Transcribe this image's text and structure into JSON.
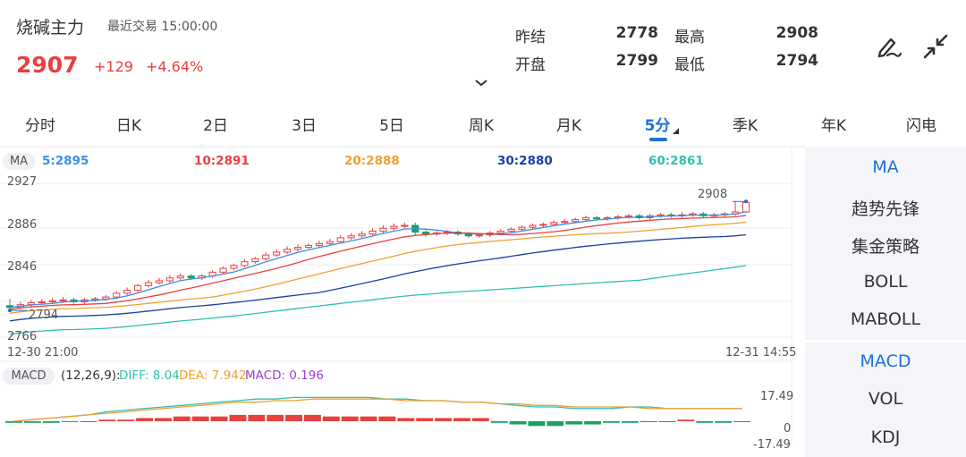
{
  "header": {
    "title": "烧碱主力",
    "last_trade": "最近交易 15:00:00",
    "price": "2907",
    "change": "+129",
    "change_pct": "+4.64%",
    "quotes": [
      {
        "label": "昨结",
        "value": "2778"
      },
      {
        "label": "最高",
        "value": "2908"
      },
      {
        "label": "开盘",
        "value": "2799"
      },
      {
        "label": "最低",
        "value": "2794"
      }
    ],
    "icons": [
      "draw-pen-icon",
      "collapse-arrows-icon",
      "chevron-down-icon"
    ]
  },
  "tabs": [
    {
      "label": "分时"
    },
    {
      "label": "日K"
    },
    {
      "label": "2日"
    },
    {
      "label": "3日"
    },
    {
      "label": "5日"
    },
    {
      "label": "周K"
    },
    {
      "label": "月K"
    },
    {
      "label": "5分",
      "active": true
    },
    {
      "label": "季K"
    },
    {
      "label": "年K"
    },
    {
      "label": "闪电"
    }
  ],
  "ma_legend": {
    "badge": "MA",
    "items": [
      {
        "text": "5:2895",
        "color": "#3a8ee6"
      },
      {
        "text": "10:2891",
        "color": "#e8403e"
      },
      {
        "text": "20:2888",
        "color": "#f0a030"
      },
      {
        "text": "30:2880",
        "color": "#1a3fa8"
      },
      {
        "text": "60:2861",
        "color": "#2fc1b0"
      }
    ]
  },
  "price_axis": {
    "top": "2927",
    "mid_high": "2886",
    "mid_low": "2846",
    "bottom": "2766"
  },
  "time_axis": {
    "start": "12-30 21:00",
    "end": "12-31 14:55"
  },
  "chart_annotations": {
    "high": "2908",
    "low": "2794"
  },
  "right_panel": {
    "main_indicators": [
      "MA",
      "趋势先锋",
      "集金策略",
      "BOLL",
      "MABOLL"
    ],
    "sub_indicators": [
      "MACD",
      "VOL",
      "KDJ"
    ]
  },
  "macd_legend": {
    "badge": "MACD",
    "params": "(12,26,9):",
    "diff": "DIFF: 8.04",
    "dea": "DEA: 7.942",
    "macd": "MACD: 0.196",
    "axis_top": "17.49",
    "axis_zero": "0",
    "axis_bottom": "-17.49"
  },
  "colors": {
    "up": "#e8403e",
    "down": "#1aa260",
    "accent": "#1e6fd6"
  },
  "chart_data": {
    "type": "candlestick",
    "ylim": [
      2766,
      2927
    ],
    "candles": [
      [
        2799,
        2797,
        2806,
        2794
      ],
      [
        2797,
        2800,
        2803,
        2795
      ],
      [
        2800,
        2802,
        2805,
        2798
      ],
      [
        2802,
        2803,
        2806,
        2800
      ],
      [
        2803,
        2804,
        2807,
        2801
      ],
      [
        2804,
        2805,
        2808,
        2802
      ],
      [
        2805,
        2803,
        2807,
        2801
      ],
      [
        2803,
        2805,
        2807,
        2801
      ],
      [
        2805,
        2806,
        2808,
        2803
      ],
      [
        2806,
        2808,
        2810,
        2804
      ],
      [
        2808,
        2812,
        2814,
        2806
      ],
      [
        2812,
        2815,
        2818,
        2810
      ],
      [
        2815,
        2820,
        2822,
        2813
      ],
      [
        2820,
        2823,
        2826,
        2818
      ],
      [
        2823,
        2825,
        2828,
        2821
      ],
      [
        2825,
        2828,
        2831,
        2823
      ],
      [
        2828,
        2830,
        2833,
        2826
      ],
      [
        2830,
        2828,
        2832,
        2826
      ],
      [
        2828,
        2830,
        2832,
        2826
      ],
      [
        2830,
        2834,
        2836,
        2828
      ],
      [
        2834,
        2838,
        2840,
        2832
      ],
      [
        2838,
        2841,
        2843,
        2836
      ],
      [
        2841,
        2845,
        2848,
        2839
      ],
      [
        2845,
        2848,
        2850,
        2843
      ],
      [
        2848,
        2852,
        2855,
        2846
      ],
      [
        2852,
        2855,
        2858,
        2850
      ],
      [
        2855,
        2858,
        2861,
        2853
      ],
      [
        2858,
        2860,
        2863,
        2856
      ],
      [
        2860,
        2862,
        2864,
        2858
      ],
      [
        2862,
        2864,
        2867,
        2860
      ],
      [
        2864,
        2866,
        2869,
        2862
      ],
      [
        2866,
        2870,
        2873,
        2864
      ],
      [
        2870,
        2872,
        2875,
        2868
      ],
      [
        2872,
        2874,
        2877,
        2870
      ],
      [
        2874,
        2877,
        2880,
        2872
      ],
      [
        2877,
        2880,
        2883,
        2875
      ],
      [
        2880,
        2882,
        2885,
        2878
      ],
      [
        2882,
        2883,
        2886,
        2880
      ],
      [
        2883,
        2876,
        2886,
        2872
      ],
      [
        2876,
        2874,
        2878,
        2871
      ],
      [
        2874,
        2875,
        2877,
        2872
      ],
      [
        2875,
        2876,
        2878,
        2873
      ],
      [
        2876,
        2874,
        2878,
        2872
      ],
      [
        2874,
        2872,
        2876,
        2870
      ],
      [
        2872,
        2873,
        2875,
        2870
      ],
      [
        2873,
        2875,
        2877,
        2871
      ],
      [
        2875,
        2877,
        2879,
        2873
      ],
      [
        2877,
        2879,
        2881,
        2875
      ],
      [
        2879,
        2881,
        2883,
        2877
      ],
      [
        2881,
        2883,
        2885,
        2879
      ],
      [
        2883,
        2884,
        2886,
        2881
      ],
      [
        2884,
        2886,
        2888,
        2882
      ],
      [
        2886,
        2887,
        2890,
        2884
      ],
      [
        2887,
        2889,
        2891,
        2885
      ],
      [
        2889,
        2891,
        2893,
        2887
      ],
      [
        2891,
        2890,
        2893,
        2888
      ],
      [
        2890,
        2891,
        2893,
        2888
      ],
      [
        2891,
        2892,
        2894,
        2889
      ],
      [
        2892,
        2893,
        2895,
        2890
      ],
      [
        2893,
        2891,
        2895,
        2889
      ],
      [
        2891,
        2893,
        2895,
        2889
      ],
      [
        2893,
        2894,
        2896,
        2891
      ],
      [
        2894,
        2893,
        2896,
        2891
      ],
      [
        2893,
        2894,
        2897,
        2891
      ],
      [
        2894,
        2895,
        2897,
        2892
      ],
      [
        2895,
        2893,
        2897,
        2891
      ],
      [
        2893,
        2894,
        2896,
        2891
      ],
      [
        2894,
        2895,
        2897,
        2892
      ],
      [
        2895,
        2897,
        2908,
        2893
      ],
      [
        2897,
        2907,
        2908,
        2896
      ]
    ],
    "macd_diff": [
      0,
      1,
      2,
      3,
      4,
      6,
      7,
      8,
      9,
      10,
      11,
      12,
      13,
      14,
      14,
      15,
      15,
      15,
      15,
      15,
      14,
      14,
      13,
      13,
      12,
      12,
      11,
      10,
      9,
      9,
      8,
      8,
      8,
      9,
      9,
      8,
      8,
      8,
      8,
      8
    ],
    "macd_dea": [
      0,
      1,
      2,
      3,
      4,
      5,
      6,
      7,
      8,
      9,
      10,
      11,
      12,
      12,
      13,
      13,
      14,
      14,
      14,
      14,
      14,
      13,
      13,
      13,
      12,
      12,
      11,
      11,
      10,
      10,
      9,
      9,
      9,
      9,
      8,
      8,
      8,
      8,
      8,
      8
    ],
    "macd_hist": [
      -1,
      -1,
      -1,
      0,
      0,
      1,
      1,
      2,
      2,
      3,
      3,
      3,
      4,
      4,
      4,
      4,
      4,
      3,
      3,
      3,
      3,
      2,
      2,
      2,
      2,
      2,
      -1,
      -2,
      -3,
      -3,
      -2,
      -2,
      -1,
      -1,
      0,
      0,
      1,
      -1,
      -1,
      0
    ]
  }
}
